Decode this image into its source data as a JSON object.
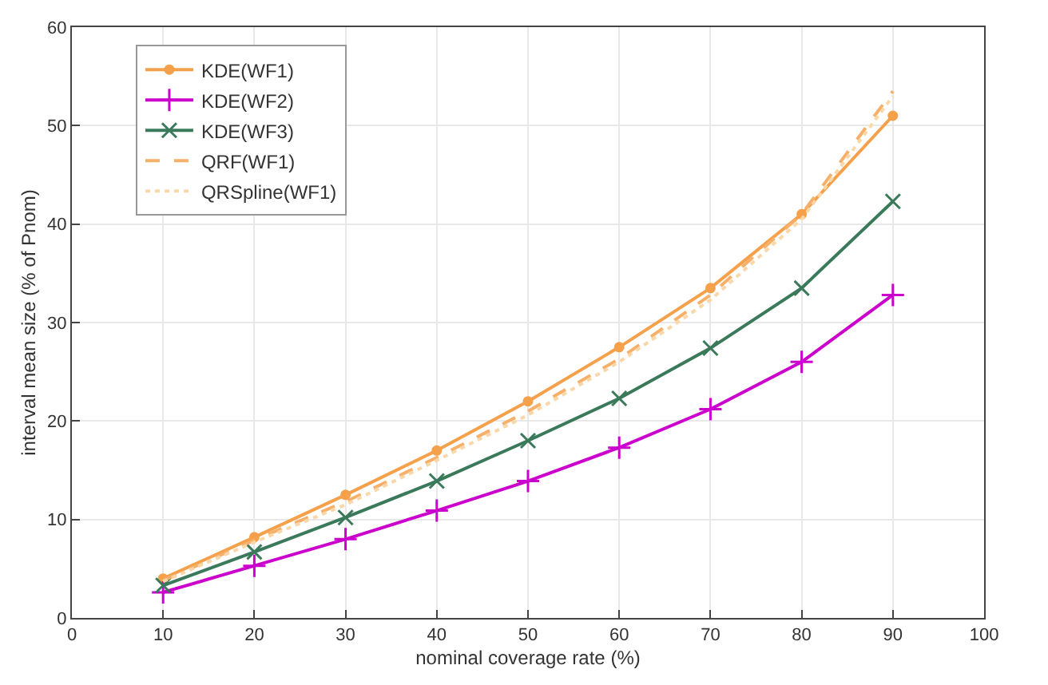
{
  "chart_data": {
    "type": "line",
    "xlabel": "nominal coverage rate (%)",
    "ylabel": "interval mean size (% of Pnom)",
    "x": [
      10,
      20,
      30,
      40,
      50,
      60,
      70,
      80,
      90
    ],
    "xlim": [
      0,
      100
    ],
    "xticks": [
      0,
      10,
      20,
      30,
      40,
      50,
      60,
      70,
      80,
      90,
      100
    ],
    "ylim": [
      0,
      60
    ],
    "yticks": [
      0,
      10,
      20,
      30,
      40,
      50,
      60
    ],
    "grid": true,
    "legend": "top left",
    "series": [
      {
        "name": "KDE(WF1)",
        "color": "#f5a04a",
        "marker": "circle",
        "line_style": "solid",
        "values": [
          4,
          8.2,
          12.5,
          17,
          22,
          27.5,
          33.5,
          41,
          51
        ]
      },
      {
        "name": "KDE(WF2)",
        "color": "#cc00cc",
        "marker": "cross",
        "line_style": "solid",
        "values": [
          2.6,
          5.3,
          8,
          10.9,
          13.9,
          17.3,
          21.2,
          26,
          32.8
        ]
      },
      {
        "name": "KDE(WF3)",
        "color": "#3a7a5a",
        "marker": "x",
        "line_style": "solid",
        "values": [
          3.3,
          6.7,
          10.2,
          13.9,
          18,
          22.3,
          27.4,
          33.5,
          42.3
        ]
      },
      {
        "name": "QRF(WF1)",
        "color": "#f7b06a",
        "marker": "none",
        "line_style": "dashed",
        "values": [
          3.8,
          7.9,
          11.8,
          16.3,
          21,
          26.3,
          32.8,
          41,
          53.5
        ]
      },
      {
        "name": "QRSpline(WF1)",
        "color": "#fad7a8",
        "marker": "none",
        "line_style": "dotted",
        "values": [
          3.7,
          7.7,
          11.5,
          16,
          20.6,
          26,
          32.3,
          40.5,
          53
        ]
      }
    ]
  }
}
